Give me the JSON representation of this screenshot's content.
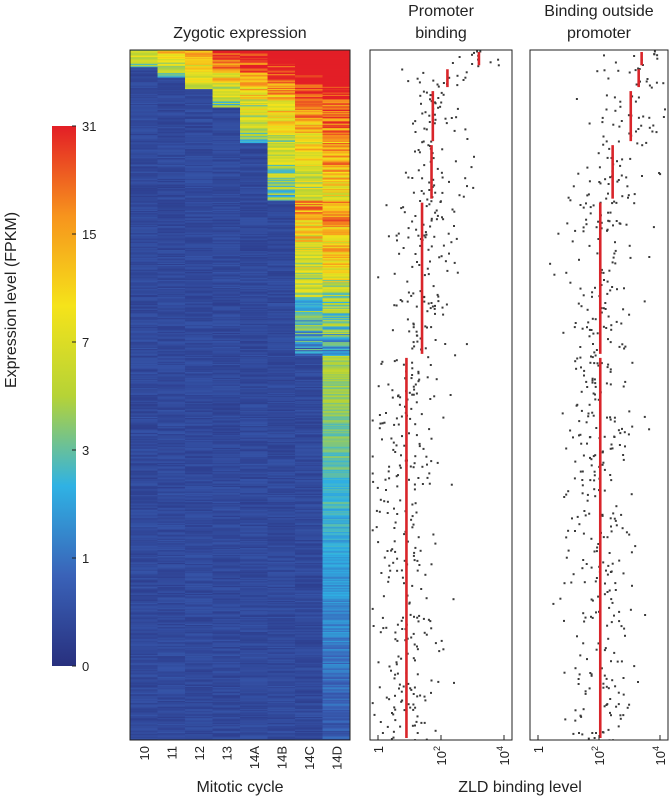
{
  "colorbar": {
    "label": "Expression level (FPKM)",
    "ticks": [
      "0",
      "1",
      "3",
      "7",
      "15",
      "31"
    ],
    "stops": [
      "#28307e",
      "#3a62b8",
      "#2fb2e4",
      "#b6d336",
      "#f5e31a",
      "#f7941d",
      "#e31e26"
    ]
  },
  "heatmap": {
    "title": "Zygotic expression",
    "xlabel": "Mitotic cycle",
    "columns": [
      "10",
      "11",
      "12",
      "13",
      "14A",
      "14B",
      "14C",
      "14D"
    ]
  },
  "promoter": {
    "title_line1": "Promoter",
    "title_line2": "binding"
  },
  "outside": {
    "title_line1": "Binding outside",
    "title_line2": "promoter"
  },
  "shared_xlabel": "ZLD binding level",
  "binding_axis_ticks": [
    {
      "base": "1",
      "exp": ""
    },
    {
      "base": "10",
      "exp": "2"
    },
    {
      "base": "10",
      "exp": "4"
    }
  ],
  "chart_data": [
    {
      "type": "heatmap",
      "title": "Zygotic expression",
      "xlabel": "Mitotic cycle",
      "categories": [
        "10",
        "11",
        "12",
        "13",
        "14A",
        "14B",
        "14C",
        "14D"
      ],
      "value_label": "Expression level (FPKM)",
      "value_range": [
        0,
        31
      ],
      "onset_groups": [
        {
          "onset": "10",
          "genes": 15
        },
        {
          "onset": "11",
          "genes": 9
        },
        {
          "onset": "12",
          "genes": 10
        },
        {
          "onset": "13",
          "genes": 16
        },
        {
          "onset": "14A",
          "genes": 31
        },
        {
          "onset": "14B",
          "genes": 50
        },
        {
          "onset": "14C",
          "genes": 135
        },
        {
          "onset": "14D",
          "genes": 334
        }
      ]
    },
    {
      "type": "scatter",
      "title": "Promoter binding",
      "xlabel": "ZLD binding level",
      "xscale": "log",
      "xlim": [
        1,
        10000
      ],
      "group_medians": [
        1600,
        160,
        55,
        50,
        25,
        8
      ]
    },
    {
      "type": "scatter",
      "title": "Binding outside promoter",
      "xlabel": "ZLD binding level",
      "xscale": "log",
      "xlim": [
        1,
        10000
      ],
      "group_medians": [
        2500,
        2000,
        1100,
        280,
        110,
        110
      ]
    }
  ]
}
